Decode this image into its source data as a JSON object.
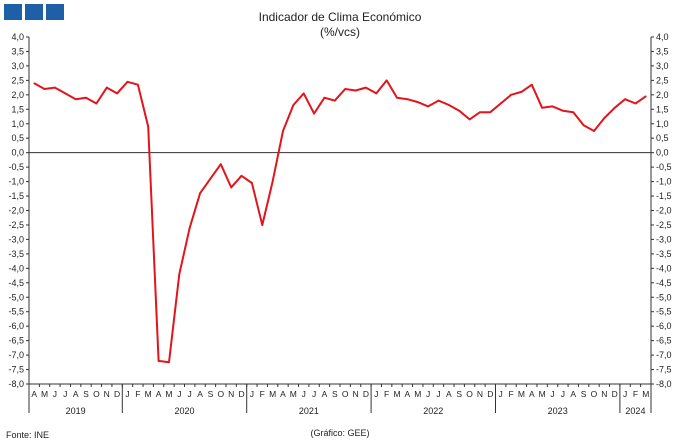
{
  "header": {
    "title": "Indicador de Clima Económico",
    "subtitle": "(%/vcs)"
  },
  "footer": {
    "source": "Fonte: INE",
    "credit": "(Gráfico: GEE)"
  },
  "colors": {
    "series": "#e3141b",
    "logo": "#1f5fa8",
    "axis": "#333333"
  },
  "chart_data": {
    "type": "line",
    "title": "Indicador de Clima Económico",
    "subtitle": "(%/vcs)",
    "ylim": [
      -8.0,
      4.0
    ],
    "ytick_step": 0.5,
    "ytick_labels": [
      "4,0",
      "3,5",
      "3,0",
      "2,5",
      "2,0",
      "1,5",
      "1,0",
      "0,5",
      "0,0",
      "-0,5",
      "-1,0",
      "-1,5",
      "-2,0",
      "-2,5",
      "-3,0",
      "-3,5",
      "-4,0",
      "-4,5",
      "-5,0",
      "-5,5",
      "-6,0",
      "-6,5",
      "-7,0",
      "-7,5",
      "-8,0"
    ],
    "month_labels": [
      "A",
      "M",
      "J",
      "J",
      "A",
      "S",
      "O",
      "N",
      "D",
      "J",
      "F",
      "M",
      "A",
      "M",
      "J",
      "J",
      "A",
      "S",
      "O",
      "N",
      "D",
      "J",
      "F",
      "M",
      "A",
      "M",
      "J",
      "J",
      "A",
      "S",
      "O",
      "N",
      "D",
      "J",
      "F",
      "M",
      "A",
      "M",
      "J",
      "J",
      "A",
      "S",
      "O",
      "N",
      "D",
      "J",
      "F",
      "M",
      "A",
      "M",
      "J",
      "J",
      "A",
      "S",
      "O",
      "N",
      "D",
      "J",
      "F",
      "M"
    ],
    "year_labels": [
      {
        "label": "2019",
        "from": 0,
        "to": 8
      },
      {
        "label": "2020",
        "from": 9,
        "to": 20
      },
      {
        "label": "2021",
        "from": 21,
        "to": 32
      },
      {
        "label": "2022",
        "from": 33,
        "to": 44
      },
      {
        "label": "2023",
        "from": 45,
        "to": 56
      },
      {
        "label": "2024",
        "from": 57,
        "to": 59
      }
    ],
    "x": [
      "2019-04",
      "2019-05",
      "2019-06",
      "2019-07",
      "2019-08",
      "2019-09",
      "2019-10",
      "2019-11",
      "2019-12",
      "2020-01",
      "2020-02",
      "2020-03",
      "2020-04",
      "2020-05",
      "2020-06",
      "2020-07",
      "2020-08",
      "2020-09",
      "2020-10",
      "2020-11",
      "2020-12",
      "2021-01",
      "2021-02",
      "2021-03",
      "2021-04",
      "2021-05",
      "2021-06",
      "2021-07",
      "2021-08",
      "2021-09",
      "2021-10",
      "2021-11",
      "2021-12",
      "2022-01",
      "2022-02",
      "2022-03",
      "2022-04",
      "2022-05",
      "2022-06",
      "2022-07",
      "2022-08",
      "2022-09",
      "2022-10",
      "2022-11",
      "2022-12",
      "2023-01",
      "2023-02",
      "2023-03",
      "2023-04",
      "2023-05",
      "2023-06",
      "2023-07",
      "2023-08",
      "2023-09",
      "2023-10",
      "2023-11",
      "2023-12",
      "2024-01",
      "2024-02",
      "2024-03"
    ],
    "values": [
      2.4,
      2.2,
      2.25,
      2.05,
      1.85,
      1.9,
      1.7,
      2.25,
      2.05,
      2.45,
      2.35,
      0.9,
      -7.2,
      -7.25,
      -4.2,
      -2.6,
      -1.4,
      -0.9,
      -0.4,
      -1.2,
      -0.8,
      -1.05,
      -2.5,
      -1.0,
      0.75,
      1.65,
      2.05,
      1.35,
      1.9,
      1.8,
      2.2,
      2.15,
      2.25,
      2.05,
      2.5,
      1.9,
      1.85,
      1.75,
      1.6,
      1.8,
      1.65,
      1.45,
      1.15,
      1.4,
      1.4,
      1.7,
      2.0,
      2.1,
      2.35,
      1.55,
      1.6,
      1.45,
      1.4,
      0.95,
      0.75,
      1.2,
      1.55,
      1.85,
      1.7,
      1.95
    ]
  }
}
